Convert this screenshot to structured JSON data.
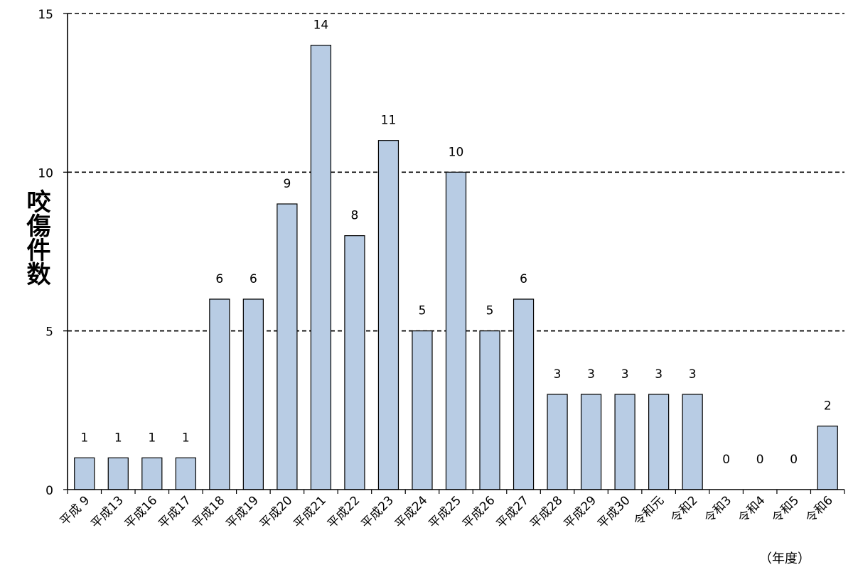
{
  "chart_data": {
    "type": "bar",
    "title": "",
    "ylabel": "咬傷件数",
    "xlabel": "（年度）",
    "ylim": [
      0,
      15
    ],
    "yticks": [
      0,
      5,
      10,
      15
    ],
    "grid": true,
    "grid_style": "dashed",
    "legend": "none",
    "bar_color": "#B8CCE4",
    "bar_edge_color": "#000000",
    "categories": [
      "平成 9",
      "平成13",
      "平成16",
      "平成17",
      "平成18",
      "平成19",
      "平成20",
      "平成21",
      "平成22",
      "平成23",
      "平成24",
      "平成25",
      "平成26",
      "平成27",
      "平成28",
      "平成29",
      "平成30",
      "令和元",
      "令和2",
      "令和3",
      "令和4",
      "令和5",
      "令和6"
    ],
    "values": [
      1,
      1,
      1,
      1,
      6,
      6,
      9,
      14,
      8,
      11,
      5,
      10,
      5,
      6,
      3,
      3,
      3,
      3,
      3,
      0,
      0,
      0,
      2
    ]
  }
}
